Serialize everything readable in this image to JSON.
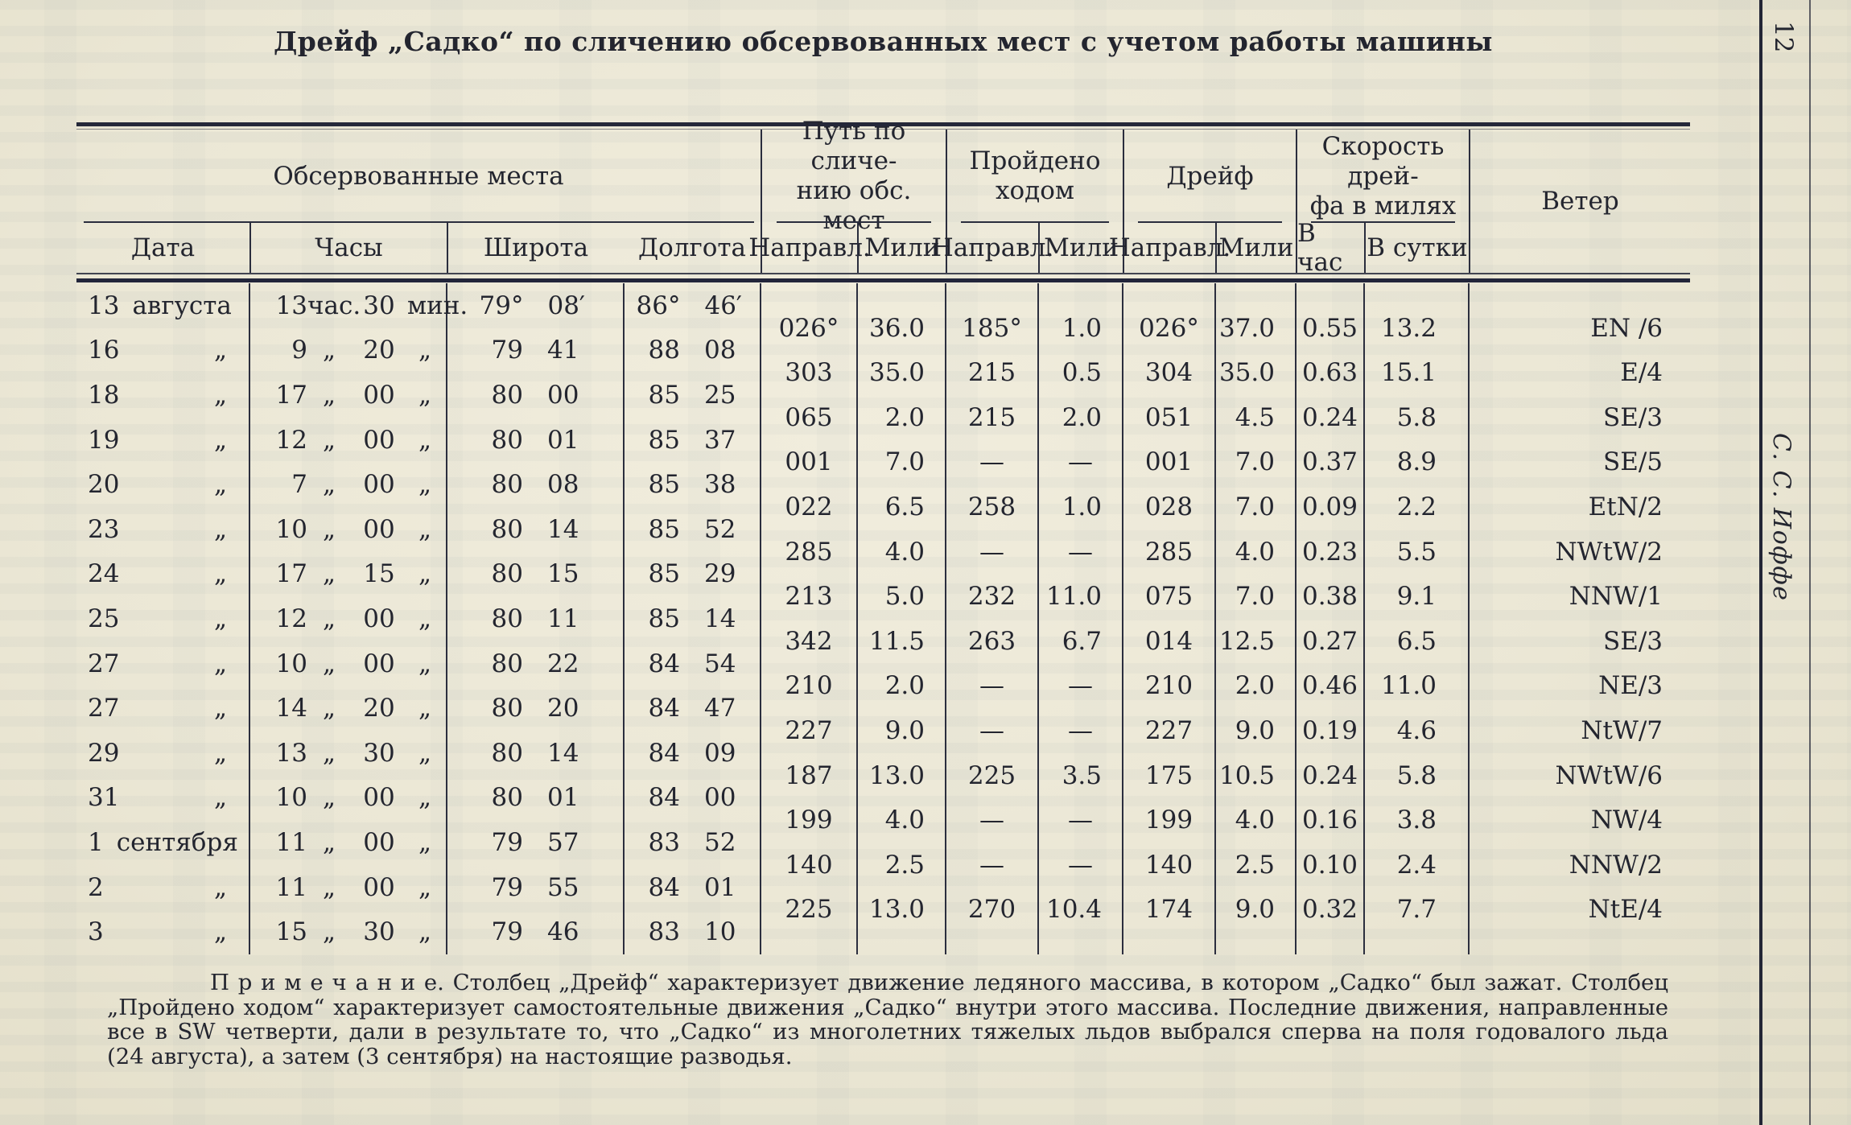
{
  "page": {
    "number": "12",
    "margin_author": "С. С. Иоффе"
  },
  "title": "Дрейф „Садко“ по сличению обсервованных мест с учетом работы машины",
  "table": {
    "group_headers": [
      {
        "label": "Обсервованные места",
        "span": 4
      },
      {
        "label": "Путь по сличе-\nнию обс. мест",
        "span": 2
      },
      {
        "label": "Пройдено\nходом",
        "span": 2
      },
      {
        "label": "Дрейф",
        "span": 2
      },
      {
        "label": "Скорость дрей-\nфа в милях",
        "span": 2
      },
      {
        "label": "Ветер",
        "span": 1
      }
    ],
    "sub_headers": [
      "Дата",
      "Часы",
      "Широта",
      "Долгота",
      "Направл.",
      "Мили",
      "Направл.",
      "Мили",
      "Направл.",
      "Мили",
      "В час",
      "В сутки"
    ],
    "obs_rows": [
      {
        "date_num": "13",
        "date_suffix": "августа",
        "h": "13",
        "hs": "час.",
        "m": "30",
        "ms": "мин.",
        "lat_d": "79°",
        "lat_m": "08′",
        "lon_d": "86°",
        "lon_m": "46′"
      },
      {
        "date_num": "16",
        "date_suffix": "„",
        "h": "9",
        "hs": "„",
        "m": "20",
        "ms": "„",
        "lat_d": "79",
        "lat_m": "41",
        "lon_d": "88",
        "lon_m": "08"
      },
      {
        "date_num": "18",
        "date_suffix": "„",
        "h": "17",
        "hs": "„",
        "m": "00",
        "ms": "„",
        "lat_d": "80",
        "lat_m": "00",
        "lon_d": "85",
        "lon_m": "25"
      },
      {
        "date_num": "19",
        "date_suffix": "„",
        "h": "12",
        "hs": "„",
        "m": "00",
        "ms": "„",
        "lat_d": "80",
        "lat_m": "01",
        "lon_d": "85",
        "lon_m": "37"
      },
      {
        "date_num": "20",
        "date_suffix": "„",
        "h": "7",
        "hs": "„",
        "m": "00",
        "ms": "„",
        "lat_d": "80",
        "lat_m": "08",
        "lon_d": "85",
        "lon_m": "38"
      },
      {
        "date_num": "23",
        "date_suffix": "„",
        "h": "10",
        "hs": "„",
        "m": "00",
        "ms": "„",
        "lat_d": "80",
        "lat_m": "14",
        "lon_d": "85",
        "lon_m": "52"
      },
      {
        "date_num": "24",
        "date_suffix": "„",
        "h": "17",
        "hs": "„",
        "m": "15",
        "ms": "„",
        "lat_d": "80",
        "lat_m": "15",
        "lon_d": "85",
        "lon_m": "29"
      },
      {
        "date_num": "25",
        "date_suffix": "„",
        "h": "12",
        "hs": "„",
        "m": "00",
        "ms": "„",
        "lat_d": "80",
        "lat_m": "11",
        "lon_d": "85",
        "lon_m": "14"
      },
      {
        "date_num": "27",
        "date_suffix": "„",
        "h": "10",
        "hs": "„",
        "m": "00",
        "ms": "„",
        "lat_d": "80",
        "lat_m": "22",
        "lon_d": "84",
        "lon_m": "54"
      },
      {
        "date_num": "27",
        "date_suffix": "„",
        "h": "14",
        "hs": "„",
        "m": "20",
        "ms": "„",
        "lat_d": "80",
        "lat_m": "20",
        "lon_d": "84",
        "lon_m": "47"
      },
      {
        "date_num": "29",
        "date_suffix": "„",
        "h": "13",
        "hs": "„",
        "m": "30",
        "ms": "„",
        "lat_d": "80",
        "lat_m": "14",
        "lon_d": "84",
        "lon_m": "09"
      },
      {
        "date_num": "31",
        "date_suffix": "„",
        "h": "10",
        "hs": "„",
        "m": "00",
        "ms": "„",
        "lat_d": "80",
        "lat_m": "01",
        "lon_d": "84",
        "lon_m": "00"
      },
      {
        "date_num": "1",
        "date_suffix": "сентября",
        "h": "11",
        "hs": "„",
        "m": "00",
        "ms": "„",
        "lat_d": "79",
        "lat_m": "57",
        "lon_d": "83",
        "lon_m": "52"
      },
      {
        "date_num": "2",
        "date_suffix": "„",
        "h": "11",
        "hs": "„",
        "m": "00",
        "ms": "„",
        "lat_d": "79",
        "lat_m": "55",
        "lon_d": "84",
        "lon_m": "01"
      },
      {
        "date_num": "3",
        "date_suffix": "„",
        "h": "15",
        "hs": "„",
        "m": "30",
        "ms": "„",
        "lat_d": "79",
        "lat_m": "46",
        "lon_d": "83",
        "lon_m": "10"
      }
    ],
    "interval_rows": [
      {
        "path_dir": "026°",
        "path_mi": "36.0",
        "run_dir": "185°",
        "run_mi": "1.0",
        "drift_dir": "026°",
        "drift_mi": "37.0",
        "per_hour": "0.55",
        "per_day": "13.2",
        "wind": "EN /6"
      },
      {
        "path_dir": "303",
        "path_mi": "35.0",
        "run_dir": "215",
        "run_mi": "0.5",
        "drift_dir": "304",
        "drift_mi": "35.0",
        "per_hour": "0.63",
        "per_day": "15.1",
        "wind": "E/4"
      },
      {
        "path_dir": "065",
        "path_mi": "2.0",
        "run_dir": "215",
        "run_mi": "2.0",
        "drift_dir": "051",
        "drift_mi": "4.5",
        "per_hour": "0.24",
        "per_day": "5.8",
        "wind": "SE/3"
      },
      {
        "path_dir": "001",
        "path_mi": "7.0",
        "run_dir": "—",
        "run_mi": "—",
        "drift_dir": "001",
        "drift_mi": "7.0",
        "per_hour": "0.37",
        "per_day": "8.9",
        "wind": "SE/5"
      },
      {
        "path_dir": "022",
        "path_mi": "6.5",
        "run_dir": "258",
        "run_mi": "1.0",
        "drift_dir": "028",
        "drift_mi": "7.0",
        "per_hour": "0.09",
        "per_day": "2.2",
        "wind": "EtN/2"
      },
      {
        "path_dir": "285",
        "path_mi": "4.0",
        "run_dir": "—",
        "run_mi": "—",
        "drift_dir": "285",
        "drift_mi": "4.0",
        "per_hour": "0.23",
        "per_day": "5.5",
        "wind": "NWtW/2"
      },
      {
        "path_dir": "213",
        "path_mi": "5.0",
        "run_dir": "232",
        "run_mi": "11.0",
        "drift_dir": "075",
        "drift_mi": "7.0",
        "per_hour": "0.38",
        "per_day": "9.1",
        "wind": "NNW/1"
      },
      {
        "path_dir": "342",
        "path_mi": "11.5",
        "run_dir": "263",
        "run_mi": "6.7",
        "drift_dir": "014",
        "drift_mi": "12.5",
        "per_hour": "0.27",
        "per_day": "6.5",
        "wind": "SE/3"
      },
      {
        "path_dir": "210",
        "path_mi": "2.0",
        "run_dir": "—",
        "run_mi": "—",
        "drift_dir": "210",
        "drift_mi": "2.0",
        "per_hour": "0.46",
        "per_day": "11.0",
        "wind": "NE/3"
      },
      {
        "path_dir": "227",
        "path_mi": "9.0",
        "run_dir": "—",
        "run_mi": "—",
        "drift_dir": "227",
        "drift_mi": "9.0",
        "per_hour": "0.19",
        "per_day": "4.6",
        "wind": "NtW/7"
      },
      {
        "path_dir": "187",
        "path_mi": "13.0",
        "run_dir": "225",
        "run_mi": "3.5",
        "drift_dir": "175",
        "drift_mi": "10.5",
        "per_hour": "0.24",
        "per_day": "5.8",
        "wind": "NWtW/6"
      },
      {
        "path_dir": "199",
        "path_mi": "4.0",
        "run_dir": "—",
        "run_mi": "—",
        "drift_dir": "199",
        "drift_mi": "4.0",
        "per_hour": "0.16",
        "per_day": "3.8",
        "wind": "NW/4"
      },
      {
        "path_dir": "140",
        "path_mi": "2.5",
        "run_dir": "—",
        "run_mi": "—",
        "drift_dir": "140",
        "drift_mi": "2.5",
        "per_hour": "0.10",
        "per_day": "2.4",
        "wind": "NNW/2"
      },
      {
        "path_dir": "225",
        "path_mi": "13.0",
        "run_dir": "270",
        "run_mi": "10.4",
        "drift_dir": "174",
        "drift_mi": "9.0",
        "per_hour": "0.32",
        "per_day": "7.7",
        "wind": "NtE/4"
      }
    ]
  },
  "note": {
    "lines": [
      "П р и м е ч а н и е.  Столбец  „Дрейф“  характеризует  движение  ледяного  массива,  в  котором  „Садко“  был  зажат.  Столбец",
      "„Пройдено ходом“ характеризует самостоятельные движения „Садко“ внутри этого массива. Последние движения, направленные",
      "все в SW четверти, дали в результате то, что „Садко“ из многолетних тяжелых льдов выбрался сперва на поля годовалого льда",
      "(24 августа), а затем (3 сентября) на настоящие разводья."
    ]
  }
}
